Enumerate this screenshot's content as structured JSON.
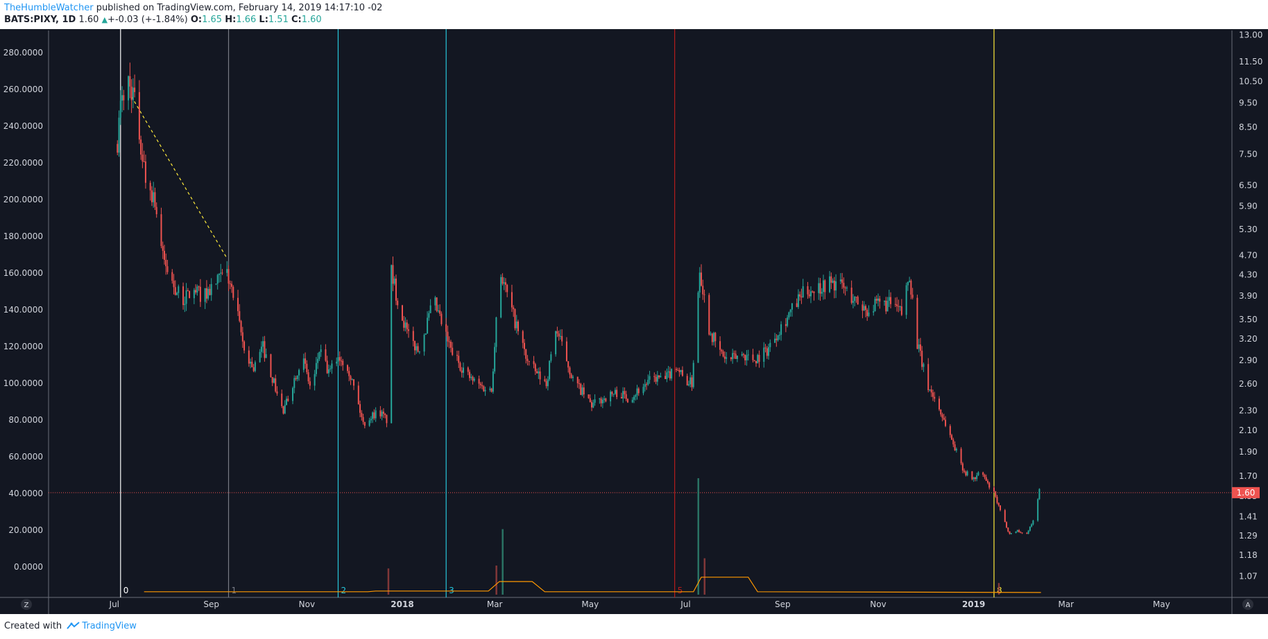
{
  "header": {
    "author": "TheHumbleWatcher",
    "published_text": "published on TradingView.com, February 14, 2019 14:17:10 -02",
    "symbol": "BATS:PIXY, 1D",
    "last": "1.60",
    "change": "+-0.03 (+-1.84%)",
    "o_label": "O:",
    "o_value": "1.65",
    "h_label": "H:",
    "h_value": "1.66",
    "l_label": "L:",
    "l_value": "1.51",
    "c_label": "C:",
    "c_value": "1.60"
  },
  "footer": {
    "created_with": "Created with",
    "brand": "TradingView"
  },
  "buttons": {
    "z_label": "Z",
    "a_label": "A"
  },
  "colors": {
    "background": "#131722",
    "up": "#26a69a",
    "down": "#ef5350",
    "grid_text": "#d1d4dc",
    "axis_line": "#6b6f7a",
    "last_price": "#ef5350",
    "cycle_white": "#ffffff",
    "cycle_gray": "#787b86",
    "cycle_cyan": "#26c6da",
    "cycle_red": "#b71c1c",
    "cycle_yellow": "#ffeb3b",
    "volume_line": "#ff9800",
    "trendline": "#ffeb3b"
  },
  "chart_data": {
    "type": "candlestick",
    "symbol": "BATS:PIXY",
    "interval": "1D",
    "x_range": [
      "2017-05-20",
      "2019-06-15"
    ],
    "left_axis": {
      "ticks": [
        "0.0000",
        "20.0000",
        "40.0000",
        "60.0000",
        "80.0000",
        "100.0000",
        "120.0000",
        "140.0000",
        "160.0000",
        "180.0000",
        "200.0000",
        "220.0000",
        "240.0000",
        "260.0000",
        "280.0000"
      ],
      "ylim": [
        -15,
        292
      ]
    },
    "right_axis": {
      "scale": "log",
      "ticks": [
        "1.07",
        "1.18",
        "1.29",
        "1.41",
        "1.55",
        "1.70",
        "1.90",
        "2.10",
        "2.30",
        "2.60",
        "2.90",
        "3.20",
        "3.50",
        "3.90",
        "4.30",
        "4.70",
        "5.30",
        "5.90",
        "6.50",
        "7.50",
        "8.50",
        "9.50",
        "10.50",
        "11.50",
        "13.00"
      ],
      "last_price_label": "1.60"
    },
    "x_ticks": [
      {
        "date": "2017-07-01",
        "label": "Jul",
        "bold": false
      },
      {
        "date": "2017-09-01",
        "label": "Sep",
        "bold": false
      },
      {
        "date": "2017-11-01",
        "label": "Nov",
        "bold": false
      },
      {
        "date": "2018-01-01",
        "label": "2018",
        "bold": true
      },
      {
        "date": "2018-03-01",
        "label": "Mar",
        "bold": false
      },
      {
        "date": "2018-05-01",
        "label": "May",
        "bold": false
      },
      {
        "date": "2018-07-01",
        "label": "Jul",
        "bold": false
      },
      {
        "date": "2018-09-01",
        "label": "Sep",
        "bold": false
      },
      {
        "date": "2018-11-01",
        "label": "Nov",
        "bold": false
      },
      {
        "date": "2019-01-01",
        "label": "2019",
        "bold": true
      },
      {
        "date": "2019-03-01",
        "label": "Mar",
        "bold": false
      },
      {
        "date": "2019-05-01",
        "label": "May",
        "bold": false
      }
    ],
    "last_price": 40.5,
    "cycle_lines": [
      {
        "date": "2017-07-05",
        "label": "0",
        "color": "#ffffff"
      },
      {
        "date": "2017-09-12",
        "label": "1",
        "color": "#787b86"
      },
      {
        "date": "2017-11-21",
        "label": "2",
        "color": "#26c6da"
      },
      {
        "date": "2018-01-29",
        "label": "3",
        "color": "#26c6da"
      },
      {
        "date": "2018-06-24",
        "label": "5",
        "color": "#b71c1c"
      },
      {
        "date": "2019-01-14",
        "label": "8",
        "color": "#ffeb3b"
      }
    ],
    "trendline": {
      "from": [
        "2017-07-12",
        256
      ],
      "to": [
        "2017-09-11",
        168
      ],
      "style": "dashed"
    },
    "price_path": [
      [
        "2017-07-01",
        215
      ],
      [
        "2017-07-05",
        250
      ],
      [
        "2017-07-09",
        266
      ],
      [
        "2017-07-13",
        258
      ],
      [
        "2017-07-17",
        235
      ],
      [
        "2017-07-21",
        212
      ],
      [
        "2017-07-27",
        200
      ],
      [
        "2017-08-01",
        168
      ],
      [
        "2017-08-07",
        155
      ],
      [
        "2017-08-13",
        145
      ],
      [
        "2017-08-20",
        150
      ],
      [
        "2017-08-28",
        148
      ],
      [
        "2017-09-06",
        156
      ],
      [
        "2017-09-11",
        160
      ],
      [
        "2017-09-16",
        144
      ],
      [
        "2017-09-22",
        118
      ],
      [
        "2017-09-28",
        108
      ],
      [
        "2017-10-04",
        120
      ],
      [
        "2017-10-11",
        100
      ],
      [
        "2017-10-17",
        84
      ],
      [
        "2017-10-23",
        100
      ],
      [
        "2017-10-29",
        115
      ],
      [
        "2017-11-04",
        95
      ],
      [
        "2017-11-09",
        118
      ],
      [
        "2017-11-15",
        105
      ],
      [
        "2017-11-21",
        115
      ],
      [
        "2017-11-27",
        110
      ],
      [
        "2017-12-02",
        95
      ],
      [
        "2017-12-07",
        78
      ],
      [
        "2017-12-12",
        82
      ],
      [
        "2017-12-17",
        85
      ],
      [
        "2017-12-22",
        80
      ],
      [
        "2017-12-25",
        160
      ],
      [
        "2017-12-30",
        142
      ],
      [
        "2018-01-05",
        125
      ],
      [
        "2018-01-11",
        118
      ],
      [
        "2018-01-16",
        130
      ],
      [
        "2018-01-21",
        145
      ],
      [
        "2018-01-27",
        130
      ],
      [
        "2018-02-01",
        118
      ],
      [
        "2018-02-07",
        110
      ],
      [
        "2018-02-14",
        102
      ],
      [
        "2018-02-21",
        98
      ],
      [
        "2018-02-27",
        96
      ],
      [
        "2018-03-04",
        163
      ],
      [
        "2018-03-10",
        145
      ],
      [
        "2018-03-16",
        128
      ],
      [
        "2018-03-22",
        112
      ],
      [
        "2018-03-28",
        105
      ],
      [
        "2018-04-03",
        100
      ],
      [
        "2018-04-09",
        130
      ],
      [
        "2018-04-14",
        118
      ],
      [
        "2018-04-20",
        102
      ],
      [
        "2018-04-26",
        95
      ],
      [
        "2018-05-02",
        88
      ],
      [
        "2018-05-10",
        92
      ],
      [
        "2018-05-18",
        95
      ],
      [
        "2018-05-26",
        92
      ],
      [
        "2018-06-03",
        98
      ],
      [
        "2018-06-11",
        103
      ],
      [
        "2018-06-18",
        102
      ],
      [
        "2018-06-25",
        110
      ],
      [
        "2018-06-30",
        102
      ],
      [
        "2018-07-05",
        100
      ],
      [
        "2018-07-10",
        163
      ],
      [
        "2018-07-16",
        130
      ],
      [
        "2018-07-22",
        118
      ],
      [
        "2018-07-28",
        112
      ],
      [
        "2018-08-06",
        116
      ],
      [
        "2018-08-14",
        113
      ],
      [
        "2018-08-22",
        118
      ],
      [
        "2018-08-30",
        130
      ],
      [
        "2018-09-07",
        140
      ],
      [
        "2018-09-15",
        150
      ],
      [
        "2018-09-23",
        152
      ],
      [
        "2018-10-01",
        155
      ],
      [
        "2018-10-09",
        153
      ],
      [
        "2018-10-17",
        145
      ],
      [
        "2018-10-25",
        140
      ],
      [
        "2018-11-02",
        143
      ],
      [
        "2018-11-10",
        143
      ],
      [
        "2018-11-16",
        138
      ],
      [
        "2018-11-21",
        160
      ],
      [
        "2018-11-26",
        122
      ],
      [
        "2018-12-02",
        100
      ],
      [
        "2018-12-08",
        90
      ],
      [
        "2018-12-14",
        78
      ],
      [
        "2018-12-20",
        65
      ],
      [
        "2018-12-26",
        52
      ],
      [
        "2019-01-01",
        48
      ],
      [
        "2019-01-06",
        52
      ],
      [
        "2019-01-10",
        45
      ],
      [
        "2019-01-14",
        40
      ],
      [
        "2019-01-19",
        28
      ],
      [
        "2019-01-24",
        18
      ],
      [
        "2019-01-29",
        20
      ],
      [
        "2019-02-03",
        17
      ],
      [
        "2019-02-08",
        25
      ],
      [
        "2019-02-12",
        42
      ]
    ],
    "volume": {
      "spikes": [
        [
          "2017-12-23",
          18
        ],
        [
          "2018-03-02",
          20
        ],
        [
          "2018-03-06",
          45
        ],
        [
          "2018-07-09",
          80
        ],
        [
          "2018-07-13",
          25
        ],
        [
          "2019-01-17",
          8
        ]
      ],
      "ma_line": [
        [
          "2017-07-20",
          2
        ],
        [
          "2017-12-10",
          2
        ],
        [
          "2017-12-15",
          2.5
        ],
        [
          "2018-02-25",
          2.5
        ],
        [
          "2018-03-04",
          9
        ],
        [
          "2018-03-25",
          9
        ],
        [
          "2018-04-02",
          2
        ],
        [
          "2018-07-06",
          2
        ],
        [
          "2018-07-11",
          12
        ],
        [
          "2018-08-10",
          12
        ],
        [
          "2018-08-16",
          2
        ],
        [
          "2019-02-13",
          1.5
        ]
      ]
    }
  }
}
